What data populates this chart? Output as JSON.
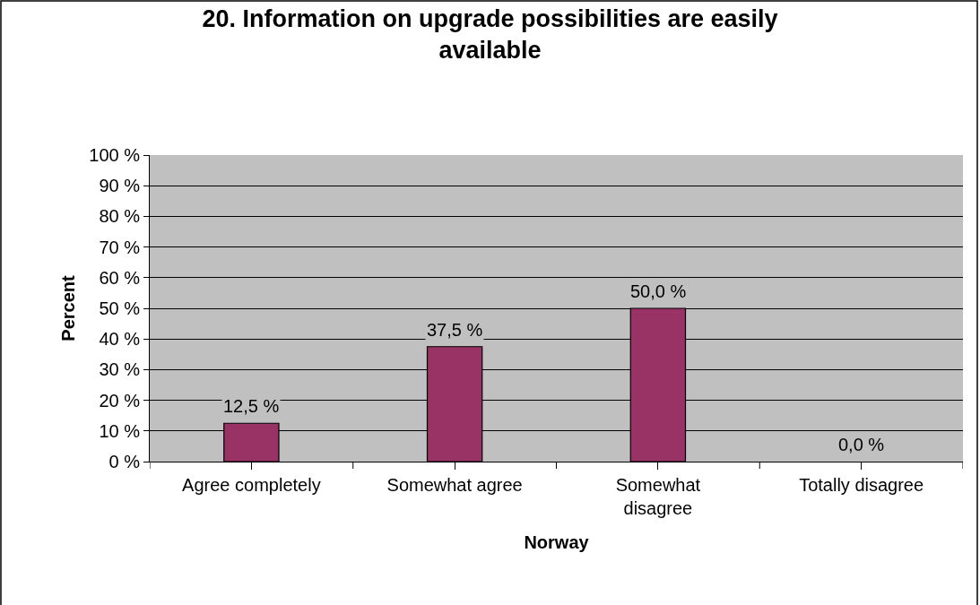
{
  "chart_data": {
    "type": "bar",
    "title": "20. Information on upgrade possibilities are easily available",
    "xlabel": "Norway",
    "ylabel": "Percent",
    "categories": [
      "Agree completely",
      "Somewhat agree",
      "Somewhat disagree",
      "Totally disagree"
    ],
    "values": [
      12.5,
      37.5,
      50.0,
      0.0
    ],
    "color": "#993366",
    "value_labels": [
      "12,5 %",
      "37,5 %",
      "50,0 %",
      "0,0 %"
    ],
    "ylim": [
      0,
      100
    ],
    "yticks": [
      {
        "value": 0,
        "label": "0 %"
      },
      {
        "value": 10,
        "label": "10 %"
      },
      {
        "value": 20,
        "label": "20 %"
      },
      {
        "value": 30,
        "label": "30 %"
      },
      {
        "value": 40,
        "label": "40 %"
      },
      {
        "value": 50,
        "label": "50 %"
      },
      {
        "value": 60,
        "label": "60 %"
      },
      {
        "value": 70,
        "label": "70 %"
      },
      {
        "value": 80,
        "label": "80 %"
      },
      {
        "value": 90,
        "label": "90 %"
      },
      {
        "value": 100,
        "label": "100 %"
      }
    ],
    "grid": "y"
  }
}
